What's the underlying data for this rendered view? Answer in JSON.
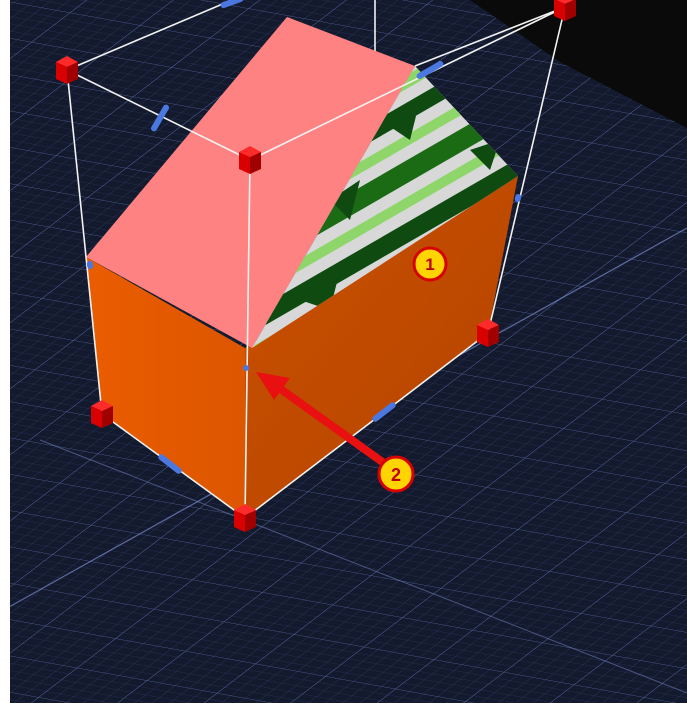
{
  "viewport": {
    "background_color": "#141a2e",
    "grid_color": "#4a5a8c",
    "void_color": "#0a0a0a",
    "frame_color": "#f2f2f2"
  },
  "box": {
    "front_color": "#e45a00",
    "side_color": "#c04a00",
    "top_color": "#ff8282",
    "texture_colors": [
      "#1a6b14",
      "#8ed66a",
      "#d8d8d8",
      "#0f4a10"
    ]
  },
  "handles": {
    "corner_color": "#d80000",
    "edge_color": "#4a78e0"
  },
  "callouts": [
    {
      "label": "1",
      "fill": "#ffd400",
      "ring": "#d80000"
    },
    {
      "label": "2",
      "fill": "#ffd400",
      "ring": "#d80000"
    }
  ],
  "arrow": {
    "color": "#e81010"
  },
  "icons": [
    "corner-handle-icon",
    "edge-handle-icon",
    "callout-badge-icon",
    "pointer-arrow-icon"
  ]
}
